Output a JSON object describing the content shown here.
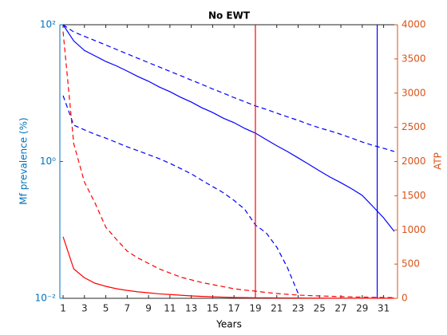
{
  "chart_data": {
    "type": "line",
    "title": "No EWT",
    "xlabel": "Years",
    "ylabel": "Mf prevalence (%)",
    "y2label": "ATP",
    "x": [
      1,
      2,
      3,
      4,
      5,
      6,
      7,
      8,
      9,
      10,
      11,
      12,
      13,
      14,
      15,
      16,
      17,
      18,
      19,
      20,
      21,
      22,
      23,
      24,
      25,
      26,
      27,
      28,
      29,
      30,
      31,
      32
    ],
    "xlim": [
      0.7,
      32.3
    ],
    "xticks": [
      1,
      3,
      5,
      7,
      9,
      11,
      13,
      15,
      17,
      19,
      21,
      23,
      25,
      27,
      29,
      31
    ],
    "ylim": [
      0.01,
      100
    ],
    "yscale": "log",
    "yticks": [
      {
        "value": 0.01,
        "label": "10⁻²"
      },
      {
        "value": 1,
        "label": "10⁰"
      },
      {
        "value": 100,
        "label": "10²"
      }
    ],
    "y2lim": [
      0,
      4000
    ],
    "y2ticks": [
      0,
      500,
      1000,
      1500,
      2000,
      2500,
      3000,
      3500,
      4000
    ],
    "left_axis_color": "#0072bd",
    "right_axis_color": "#d95319",
    "series": [
      {
        "color": "#0000ff",
        "dash": false,
        "axis": "y",
        "values": [
          100,
          58,
          42,
          35,
          29,
          25,
          21,
          17.5,
          14.9,
          12.3,
          10.5,
          8.7,
          7.4,
          6.1,
          5.2,
          4.3,
          3.7,
          3.05,
          2.6,
          2.1,
          1.7,
          1.4,
          1.13,
          0.91,
          0.73,
          0.59,
          0.49,
          0.4,
          0.32,
          0.22,
          0.15,
          0.095
        ]
      },
      {
        "color": "#0000ff",
        "dash": true,
        "axis": "y",
        "values": [
          100,
          78.5,
          67.7,
          58.5,
          50.5,
          43.5,
          37.5,
          32.3,
          27.9,
          24.1,
          20.8,
          18,
          15.5,
          13.4,
          11.5,
          10,
          8.6,
          7.5,
          6.5,
          5.8,
          5.1,
          4.5,
          4.0,
          3.5,
          3.1,
          2.8,
          2.5,
          2.2,
          1.93,
          1.72,
          1.56,
          1.4
        ]
      },
      {
        "color": "#0000ff",
        "dash": true,
        "axis": "y",
        "values": [
          9.2,
          3.4,
          2.9,
          2.5,
          2.2,
          1.9,
          1.64,
          1.44,
          1.26,
          1.1,
          0.94,
          0.79,
          0.66,
          0.53,
          0.43,
          0.35,
          0.27,
          0.2,
          0.118,
          0.091,
          0.056,
          0.028,
          0.0118,
          null,
          null,
          null,
          null,
          null,
          null,
          null,
          null,
          null
        ]
      },
      {
        "color": "#ff0000",
        "dash": true,
        "axis": "y2",
        "values": [
          3900,
          2260,
          1700,
          1390,
          1040,
          860,
          690,
          590,
          510,
          430,
          370,
          310,
          270,
          230,
          200,
          170,
          140,
          120,
          105,
          85,
          70,
          58,
          47,
          40,
          35,
          30,
          25,
          21,
          18,
          15,
          12,
          10
        ]
      },
      {
        "color": "#ff0000",
        "dash": false,
        "axis": "y2",
        "values": [
          900,
          430,
          300,
          220,
          175,
          140,
          115,
          95,
          80,
          65,
          55,
          45,
          35,
          28,
          22,
          17,
          12,
          10,
          8,
          7,
          6,
          5,
          4,
          3,
          3,
          2,
          2,
          2,
          1,
          1,
          1,
          1
        ]
      }
    ],
    "vlines": [
      {
        "x": 19,
        "color": "#ff0000"
      },
      {
        "x": 30.4,
        "color": "#0000ff"
      }
    ]
  }
}
